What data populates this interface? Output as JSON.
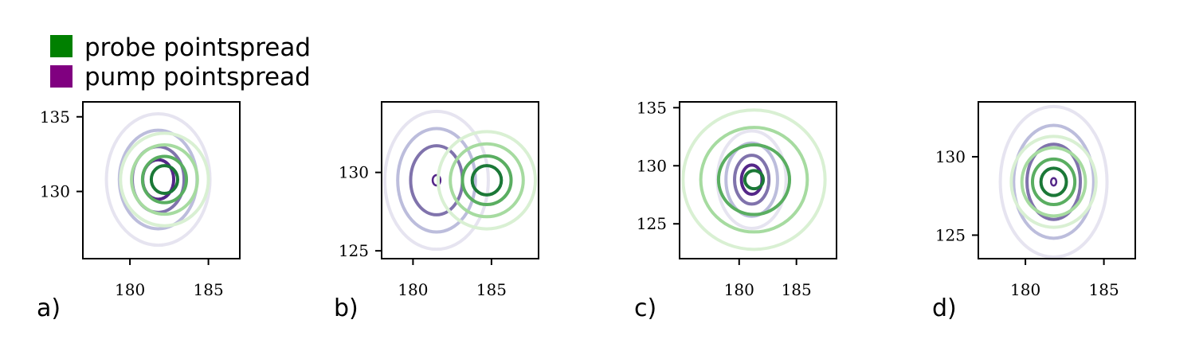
{
  "legend": {
    "items": [
      {
        "label": "probe pointspread",
        "color": "#008000"
      },
      {
        "label": "pump pointspread",
        "color": "#800080"
      }
    ]
  },
  "colors": {
    "probe_levels": [
      "#d9f0d3",
      "#a6dba0",
      "#5aae61",
      "#1b7837"
    ],
    "pump_levels": [
      "#e6e4f0",
      "#bcbddc",
      "#8073ac",
      "#542788"
    ]
  },
  "chart_data": [
    {
      "type": "contour",
      "panel_label": "a)",
      "xlim": [
        177,
        187
      ],
      "ylim": [
        125.5,
        136
      ],
      "xticks": [
        180,
        185
      ],
      "yticks": [
        130,
        135
      ],
      "series": [
        {
          "name": "pump pointspread",
          "center": [
            181.8,
            130.8
          ],
          "sigma": [
            1.65,
            2.2
          ],
          "levels": [
            {
              "radius_factor": 2.0,
              "color": "#e6e4f0"
            },
            {
              "radius_factor": 1.5,
              "color": "#bcbddc"
            },
            {
              "radius_factor": 1.0,
              "color": "#8073ac"
            },
            {
              "radius_factor": 0.6,
              "color": "#542788"
            }
          ]
        },
        {
          "name": "probe pointspread",
          "center": [
            182.2,
            130.8
          ],
          "sigma": [
            1.4,
            1.55
          ],
          "levels": [
            {
              "radius_factor": 2.0,
              "color": "#d9f0d3"
            },
            {
              "radius_factor": 1.5,
              "color": "#a6dba0"
            },
            {
              "radius_factor": 1.0,
              "color": "#5aae61"
            },
            {
              "radius_factor": 0.6,
              "color": "#1b7837"
            }
          ]
        }
      ]
    },
    {
      "type": "contour",
      "panel_label": "b)",
      "xlim": [
        178,
        188
      ],
      "ylim": [
        124.5,
        134.5
      ],
      "xticks": [
        180,
        185
      ],
      "yticks": [
        125,
        130
      ],
      "series": [
        {
          "name": "pump pointspread",
          "center": [
            181.5,
            129.5
          ],
          "sigma": [
            1.65,
            2.2
          ],
          "levels": [
            {
              "radius_factor": 2.0,
              "color": "#e6e4f0"
            },
            {
              "radius_factor": 1.5,
              "color": "#bcbddc"
            },
            {
              "radius_factor": 1.0,
              "color": "#8073ac"
            },
            {
              "radius_factor": 0.15,
              "color": "#542788"
            }
          ]
        },
        {
          "name": "probe pointspread",
          "center": [
            184.7,
            129.5
          ],
          "sigma": [
            1.55,
            1.55
          ],
          "levels": [
            {
              "radius_factor": 2.0,
              "color": "#d9f0d3"
            },
            {
              "radius_factor": 1.5,
              "color": "#a6dba0"
            },
            {
              "radius_factor": 1.0,
              "color": "#5aae61"
            },
            {
              "radius_factor": 0.6,
              "color": "#1b7837"
            }
          ]
        }
      ]
    },
    {
      "type": "contour",
      "panel_label": "c)",
      "xlim": [
        174.8,
        188.5
      ],
      "ylim": [
        122,
        135.5
      ],
      "xticks": [
        180,
        185
      ],
      "yticks": [
        125,
        130,
        135
      ],
      "series": [
        {
          "name": "pump pointspread",
          "center": [
            181.1,
            128.8
          ],
          "sigma": [
            1.5,
            2.1
          ],
          "levels": [
            {
              "radius_factor": 2.0,
              "color": "#e6e4f0"
            },
            {
              "radius_factor": 1.5,
              "color": "#bcbddc"
            },
            {
              "radius_factor": 1.0,
              "color": "#8073ac"
            },
            {
              "radius_factor": 0.6,
              "color": "#542788"
            }
          ]
        },
        {
          "name": "probe pointspread",
          "center": [
            181.3,
            128.8
          ],
          "sigma": [
            3.1,
            3.0
          ],
          "levels": [
            {
              "radius_factor": 2.0,
              "color": "#d9f0d3"
            },
            {
              "radius_factor": 1.5,
              "color": "#a6dba0"
            },
            {
              "radius_factor": 1.0,
              "color": "#5aae61"
            },
            {
              "radius_factor": 0.26,
              "color": "#1b7837"
            }
          ]
        }
      ]
    },
    {
      "type": "contour",
      "panel_label": "d)",
      "xlim": [
        177,
        187
      ],
      "ylim": [
        123.5,
        133.5
      ],
      "xticks": [
        180,
        185
      ],
      "yticks": [
        125,
        130
      ],
      "series": [
        {
          "name": "pump pointspread",
          "center": [
            181.8,
            128.4
          ],
          "sigma": [
            1.7,
            2.4
          ],
          "levels": [
            {
              "radius_factor": 2.0,
              "color": "#e6e4f0"
            },
            {
              "radius_factor": 1.5,
              "color": "#bcbddc"
            },
            {
              "radius_factor": 1.0,
              "color": "#8073ac"
            },
            {
              "radius_factor": 0.1,
              "color": "#542788"
            }
          ]
        },
        {
          "name": "probe pointspread",
          "center": [
            181.8,
            128.4
          ],
          "sigma": [
            1.35,
            1.45
          ],
          "levels": [
            {
              "radius_factor": 2.0,
              "color": "#d9f0d3"
            },
            {
              "radius_factor": 1.5,
              "color": "#a6dba0"
            },
            {
              "radius_factor": 1.0,
              "color": "#5aae61"
            },
            {
              "radius_factor": 0.6,
              "color": "#1b7837"
            }
          ]
        }
      ]
    }
  ]
}
